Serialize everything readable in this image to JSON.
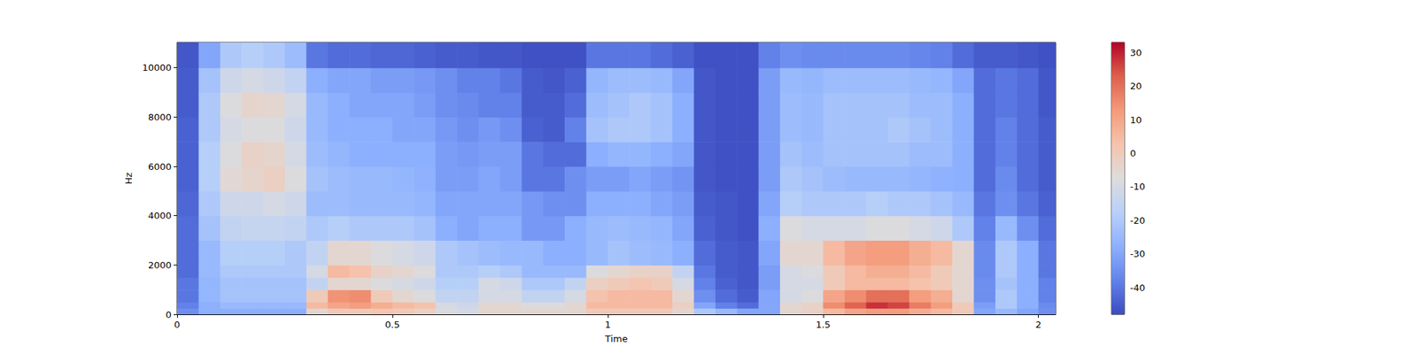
{
  "chart_data": {
    "type": "spectrogram",
    "x_label": "Time",
    "y_label": "Hz",
    "xlim": [
      0,
      2.04
    ],
    "ylim": [
      0,
      11025
    ],
    "xticks": [
      0,
      0.5,
      1,
      1.5,
      2
    ],
    "yticks": [
      0,
      2000,
      4000,
      6000,
      8000,
      10000
    ],
    "time_edges": [
      0,
      0.05,
      0.1,
      0.15,
      0.2,
      0.25,
      0.3,
      0.35,
      0.4,
      0.45,
      0.5,
      0.55,
      0.6,
      0.65,
      0.7,
      0.75,
      0.8,
      0.85,
      0.9,
      0.95,
      1.0,
      1.05,
      1.1,
      1.15,
      1.2,
      1.25,
      1.3,
      1.35,
      1.4,
      1.45,
      1.5,
      1.55,
      1.6,
      1.65,
      1.7,
      1.75,
      1.8,
      1.85,
      1.9,
      1.95,
      2.0,
      2.04
    ],
    "freq_edges": [
      0,
      250,
      500,
      1000,
      1500,
      2000,
      3000,
      4000,
      5000,
      6000,
      7000,
      8000,
      9000,
      10000,
      11025
    ],
    "values": [
      [
        -35,
        -38,
        -40,
        -40,
        -42,
        -42,
        -42,
        -43,
        -44,
        -44,
        -44,
        -45,
        -45,
        -46
      ],
      [
        -28,
        -28,
        -26,
        -26,
        -25,
        -25,
        -22,
        -20,
        -18,
        -18,
        -20,
        -20,
        -22,
        -30
      ],
      [
        -28,
        -25,
        -22,
        -22,
        -20,
        -18,
        -15,
        -12,
        -6,
        -8,
        -10,
        -8,
        -12,
        -20
      ],
      [
        -28,
        -25,
        -22,
        -22,
        -20,
        -18,
        -14,
        -12,
        -4,
        -3,
        -8,
        -4,
        -10,
        -18
      ],
      [
        -28,
        -25,
        -22,
        -22,
        -20,
        -18,
        -14,
        -10,
        -2,
        -4,
        -8,
        -5,
        -12,
        -20
      ],
      [
        -28,
        -25,
        -22,
        -22,
        -20,
        -20,
        -15,
        -12,
        -8,
        -10,
        -12,
        -10,
        -15,
        -24
      ],
      [
        -5,
        5,
        0,
        -15,
        -10,
        -15,
        -20,
        -24,
        -22,
        -24,
        -25,
        -25,
        -28,
        -40
      ],
      [
        0,
        10,
        14,
        -5,
        5,
        -5,
        -18,
        -24,
        -24,
        -26,
        -28,
        -28,
        -30,
        -42
      ],
      [
        0,
        12,
        15,
        -5,
        3,
        -5,
        -20,
        -25,
        -25,
        -28,
        -28,
        -30,
        -30,
        -42
      ],
      [
        2,
        8,
        0,
        -8,
        -3,
        -8,
        -20,
        -25,
        -25,
        -28,
        -28,
        -30,
        -32,
        -43
      ],
      [
        0,
        5,
        -5,
        -10,
        -5,
        -10,
        -20,
        -25,
        -26,
        -28,
        -30,
        -30,
        -32,
        -43
      ],
      [
        -3,
        3,
        -8,
        -12,
        -8,
        -12,
        -22,
        -26,
        -27,
        -28,
        -30,
        -32,
        -33,
        -44
      ],
      [
        -8,
        -10,
        -15,
        -18,
        -20,
        -20,
        -28,
        -30,
        -32,
        -32,
        -33,
        -35,
        -35,
        -45
      ],
      [
        -10,
        -12,
        -15,
        -18,
        -20,
        -22,
        -30,
        -30,
        -32,
        -33,
        -35,
        -36,
        -38,
        -45
      ],
      [
        -5,
        -5,
        -10,
        -10,
        -18,
        -24,
        -28,
        -30,
        -30,
        -32,
        -33,
        -38,
        -38,
        -46
      ],
      [
        -5,
        -5,
        -10,
        -12,
        -20,
        -25,
        -28,
        -30,
        -32,
        -32,
        -35,
        -38,
        -40,
        -46
      ],
      [
        -5,
        -8,
        -15,
        -20,
        -25,
        -25,
        -33,
        -33,
        -40,
        -40,
        -44,
        -45,
        -45,
        -47
      ],
      [
        -5,
        -8,
        -15,
        -20,
        -25,
        -28,
        -33,
        -35,
        -40,
        -42,
        -45,
        -45,
        -46,
        -47
      ],
      [
        -5,
        -5,
        -10,
        -15,
        -25,
        -28,
        -28,
        -35,
        -35,
        -42,
        -38,
        -42,
        -44,
        -47
      ],
      [
        0,
        5,
        3,
        -2,
        -8,
        -25,
        -25,
        -28,
        -32,
        -28,
        -22,
        -24,
        -26,
        -40
      ],
      [
        0,
        5,
        5,
        0,
        -5,
        -22,
        -24,
        -28,
        -32,
        -26,
        -20,
        -22,
        -24,
        -40
      ],
      [
        0,
        5,
        5,
        2,
        -3,
        -24,
        -25,
        -28,
        -30,
        -26,
        -20,
        -20,
        -24,
        -40
      ],
      [
        0,
        5,
        5,
        0,
        -3,
        -25,
        -26,
        -30,
        -32,
        -28,
        -22,
        -22,
        -25,
        -42
      ],
      [
        -5,
        -2,
        -5,
        -10,
        -15,
        -28,
        -30,
        -32,
        -34,
        -30,
        -28,
        -28,
        -30,
        -44
      ],
      [
        -20,
        -30,
        -35,
        -38,
        -40,
        -42,
        -44,
        -45,
        -46,
        -46,
        -46,
        -46,
        -46,
        -47
      ],
      [
        -25,
        -38,
        -42,
        -44,
        -45,
        -45,
        -46,
        -46,
        -47,
        -47,
        -47,
        -47,
        -47,
        -47
      ],
      [
        -30,
        -42,
        -45,
        -46,
        -46,
        -46,
        -47,
        -47,
        -47,
        -47,
        -47,
        -47,
        -47,
        -47
      ],
      [
        -30,
        -30,
        -30,
        -32,
        -32,
        -30,
        -28,
        -30,
        -32,
        -32,
        -32,
        -32,
        -32,
        -38
      ],
      [
        -5,
        -5,
        -10,
        -10,
        -10,
        -5,
        -8,
        -18,
        -20,
        -22,
        -24,
        -24,
        -25,
        -35
      ],
      [
        -3,
        -3,
        -8,
        -10,
        -8,
        -5,
        -10,
        -20,
        -22,
        -24,
        -25,
        -25,
        -26,
        -36
      ],
      [
        5,
        15,
        10,
        0,
        0,
        5,
        -10,
        -20,
        -24,
        -22,
        -22,
        -22,
        -24,
        -36
      ],
      [
        10,
        22,
        15,
        5,
        5,
        10,
        -10,
        -20,
        -25,
        -22,
        -22,
        -22,
        -24,
        -36
      ],
      [
        12,
        28,
        20,
        5,
        8,
        12,
        -8,
        -18,
        -25,
        -22,
        -22,
        -22,
        -24,
        -36
      ],
      [
        12,
        26,
        20,
        5,
        8,
        12,
        -8,
        -20,
        -25,
        -22,
        -20,
        -22,
        -24,
        -36
      ],
      [
        8,
        18,
        12,
        3,
        5,
        8,
        -10,
        -20,
        -26,
        -24,
        -22,
        -24,
        -25,
        -37
      ],
      [
        5,
        12,
        8,
        0,
        0,
        5,
        -12,
        -22,
        -27,
        -24,
        -24,
        -24,
        -26,
        -38
      ],
      [
        0,
        0,
        -5,
        -5,
        -5,
        -5,
        -20,
        -25,
        -28,
        -28,
        -28,
        -28,
        -30,
        -42
      ],
      [
        -30,
        -32,
        -35,
        -35,
        -36,
        -36,
        -38,
        -40,
        -42,
        -42,
        -42,
        -42,
        -42,
        -45
      ],
      [
        -25,
        -20,
        -20,
        -22,
        -20,
        -20,
        -25,
        -35,
        -36,
        -38,
        -38,
        -40,
        -40,
        -45
      ],
      [
        -30,
        -28,
        -28,
        -28,
        -28,
        -28,
        -35,
        -40,
        -42,
        -42,
        -42,
        -42,
        -42,
        -46
      ],
      [
        -35,
        -36,
        -38,
        -38,
        -40,
        -40,
        -42,
        -44,
        -45,
        -45,
        -45,
        -46,
        -46,
        -47
      ]
    ],
    "colorbar": {
      "clim": [
        -48,
        33
      ],
      "ticks": [
        -40,
        -30,
        -20,
        -10,
        0,
        10,
        20,
        30
      ]
    }
  }
}
